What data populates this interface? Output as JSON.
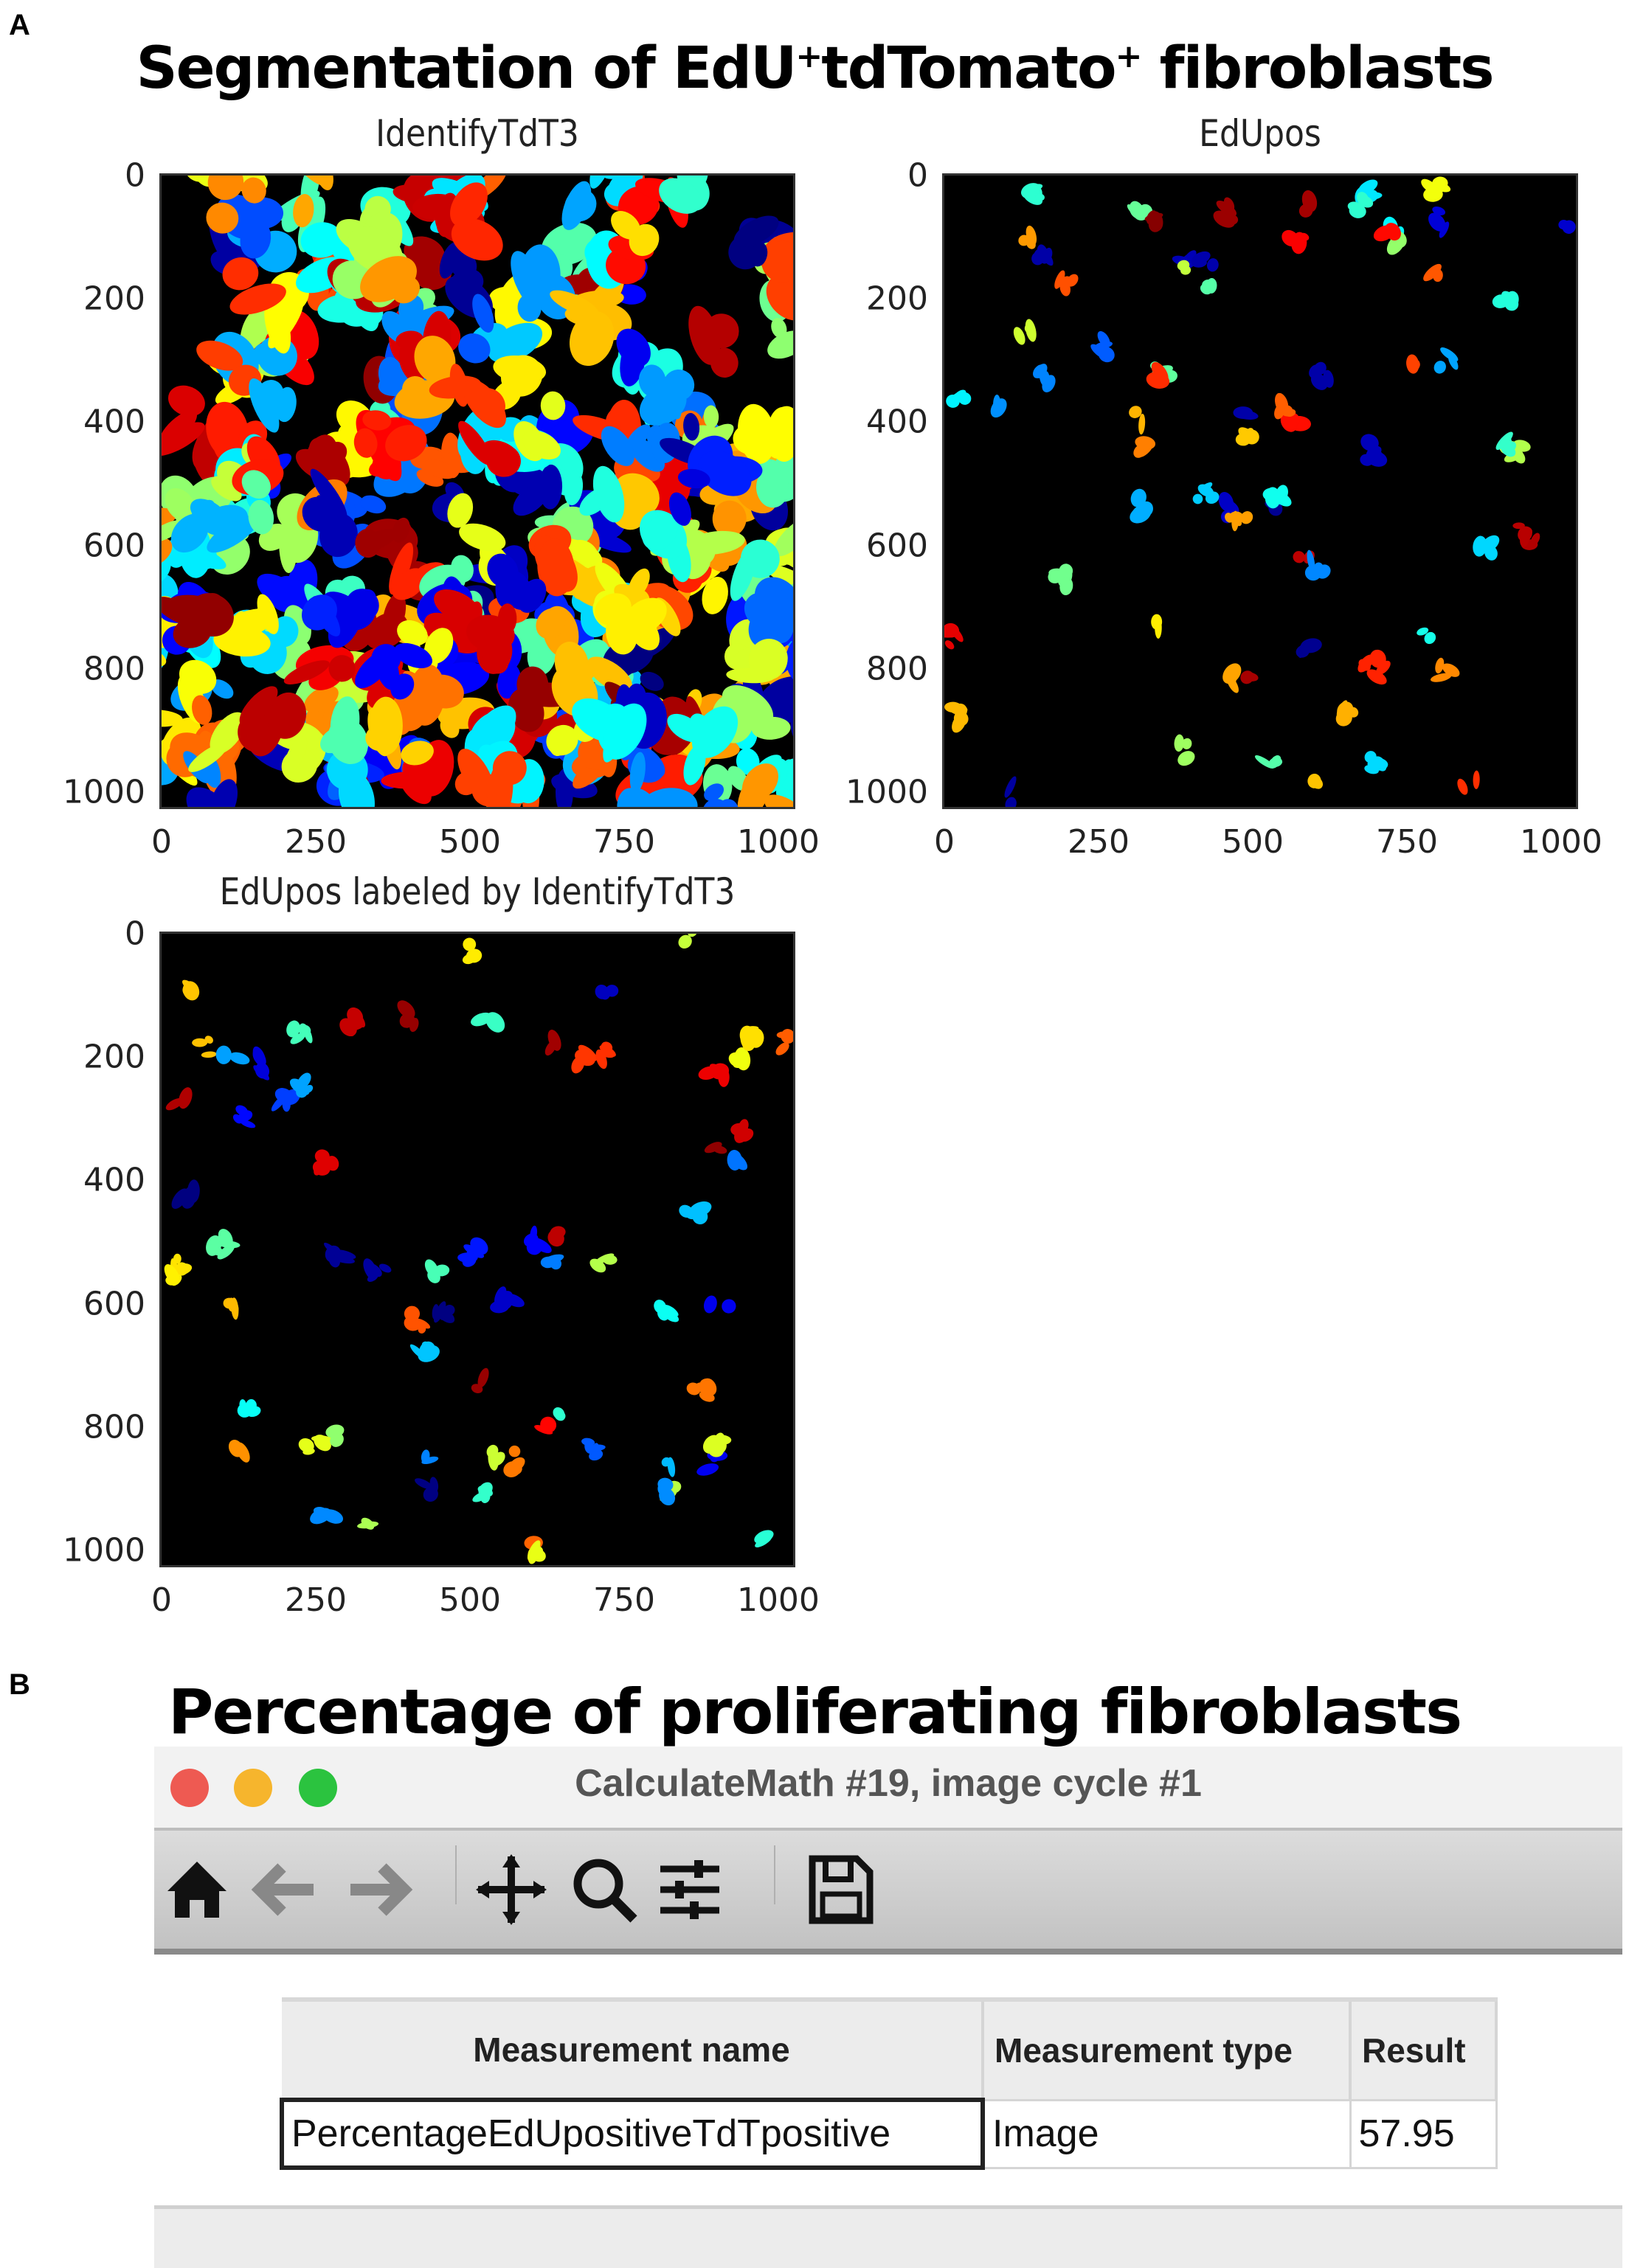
{
  "figure": {
    "panel_a_label": "A",
    "panel_b_label": "B",
    "title_a": {
      "part1": "Segmentation of EdU",
      "sup1": "+",
      "part2": "tdTomato",
      "sup2": "+",
      "part3": " fibroblasts"
    },
    "title_b": "Percentage of proliferating fibroblasts"
  },
  "chart_data": [
    {
      "type": "heatmap",
      "title": "IdentifyTdT3",
      "xticks": [
        "0",
        "250",
        "500",
        "750",
        "1000"
      ],
      "yticks": [
        "0",
        "200",
        "400",
        "600",
        "800",
        "1000"
      ],
      "xlim": [
        0,
        1024
      ],
      "ylim": [
        1024,
        0
      ],
      "colormap": "jet",
      "density": "dense"
    },
    {
      "type": "heatmap",
      "title": "EdUpos",
      "xticks": [
        "0",
        "250",
        "500",
        "750",
        "1000"
      ],
      "yticks": [
        "0",
        "200",
        "400",
        "600",
        "800",
        "1000"
      ],
      "xlim": [
        0,
        1024
      ],
      "ylim": [
        1024,
        0
      ],
      "colormap": "jet",
      "density": "sparse"
    },
    {
      "type": "heatmap",
      "title": "EdUpos labeled by IdentifyTdT3",
      "xticks": [
        "0",
        "250",
        "500",
        "750",
        "1000"
      ],
      "yticks": [
        "0",
        "200",
        "400",
        "600",
        "800",
        "1000"
      ],
      "xlim": [
        0,
        1024
      ],
      "ylim": [
        1024,
        0
      ],
      "colormap": "jet",
      "density": "sparse"
    }
  ],
  "window": {
    "title": "CalculateMath #19, image cycle #1",
    "lights": {
      "close": "#ee5a52",
      "minimize": "#f6b52d",
      "zoom": "#2bc33f"
    },
    "toolbar": [
      "home-icon",
      "back-icon",
      "forward-icon",
      "pan-icon",
      "zoom-icon",
      "configure-icon",
      "save-icon"
    ],
    "table": {
      "headers": [
        "Measurement name",
        "Measurement type",
        "Result"
      ],
      "rows": [
        [
          "PercentageEdUpositiveTdTpositive",
          "Image",
          "57.95"
        ]
      ]
    }
  }
}
